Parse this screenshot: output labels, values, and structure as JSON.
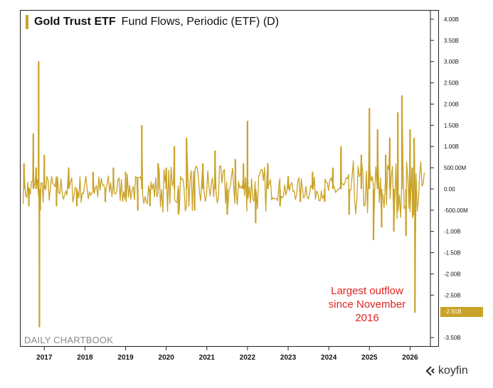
{
  "title": {
    "main": "Gold Trust ETF",
    "sub": "Fund Flows, Periodic (ETF) (D)"
  },
  "watermark": "DAILY CHARTBOOK",
  "annotation": "Largest outflow\nsince November\n2016",
  "current_value_label": "-2.91B",
  "brand": {
    "name": "koyfin",
    "icon": "koyfin-logo-icon"
  },
  "colors": {
    "series": "#c9a227",
    "annotation": "#e0241f",
    "axis": "#222222"
  },
  "chart_data": {
    "type": "bar",
    "title": "Gold Trust ETF  Fund Flows, Periodic (ETF) (D)",
    "xlabel": "",
    "ylabel": "",
    "ylim": [
      -3.7,
      4.15
    ],
    "grid": false,
    "y_ticks": [
      {
        "v": 4.0,
        "label": "4.00B"
      },
      {
        "v": 3.5,
        "label": "3.50B"
      },
      {
        "v": 3.0,
        "label": "3.00B"
      },
      {
        "v": 2.5,
        "label": "2.50B"
      },
      {
        "v": 2.0,
        "label": "2.00B"
      },
      {
        "v": 1.5,
        "label": "1.50B"
      },
      {
        "v": 1.0,
        "label": "1.00B"
      },
      {
        "v": 0.5,
        "label": "500.00M"
      },
      {
        "v": 0.0,
        "label": "0.00"
      },
      {
        "v": -0.5,
        "label": "-500.00M"
      },
      {
        "v": -1.0,
        "label": "-1.00B"
      },
      {
        "v": -1.5,
        "label": "-1.50B"
      },
      {
        "v": -2.0,
        "label": "-2.00B"
      },
      {
        "v": -2.5,
        "label": "-2.50B"
      },
      {
        "v": -3.5,
        "label": "-3.50B"
      }
    ],
    "x_ticks": [
      "2017",
      "2018",
      "2019",
      "2020",
      "2021",
      "2022",
      "2023",
      "2024",
      "2025",
      "2026"
    ],
    "x_tick_years": [
      2017,
      2018,
      2019,
      2020,
      2021,
      2022,
      2023,
      2024,
      2025,
      2026
    ],
    "xlim_years": [
      2016.4,
      2026.5
    ],
    "x": [
      2016.5,
      2016.62,
      2016.73,
      2016.8,
      2016.86,
      2016.88,
      2016.9,
      2017.0,
      2017.3,
      2017.6,
      2017.8,
      2018.2,
      2018.5,
      2018.7,
      2019.0,
      2019.3,
      2019.4,
      2019.6,
      2019.8,
      2020.0,
      2020.2,
      2020.3,
      2020.5,
      2020.7,
      2020.9,
      2021.2,
      2021.5,
      2021.7,
      2021.9,
      2022.0,
      2022.2,
      2022.5,
      2022.8,
      2023.0,
      2023.3,
      2023.6,
      2023.9,
      2024.1,
      2024.3,
      2024.5,
      2024.8,
      2025.0,
      2025.1,
      2025.2,
      2025.3,
      2025.4,
      2025.5,
      2025.6,
      2025.7,
      2025.8,
      2025.9,
      2026.0,
      2026.05,
      2026.08,
      2026.1,
      2026.12
    ],
    "values": [
      0.6,
      -0.4,
      1.3,
      0.5,
      3.0,
      -3.25,
      -0.5,
      0.8,
      -0.4,
      0.5,
      -0.4,
      0.4,
      -0.3,
      0.5,
      0.4,
      -0.5,
      1.5,
      -0.4,
      0.6,
      0.5,
      1.0,
      -0.6,
      1.2,
      -0.5,
      0.6,
      0.9,
      -0.6,
      0.7,
      0.6,
      1.6,
      -0.8,
      0.6,
      -0.4,
      0.3,
      -0.3,
      0.4,
      -0.3,
      0.5,
      1.0,
      -0.6,
      0.8,
      1.9,
      -1.2,
      1.4,
      -0.9,
      0.8,
      1.2,
      -1.0,
      1.8,
      2.2,
      -1.1,
      1.4,
      0.5,
      -0.6,
      1.2,
      -2.91
    ]
  }
}
